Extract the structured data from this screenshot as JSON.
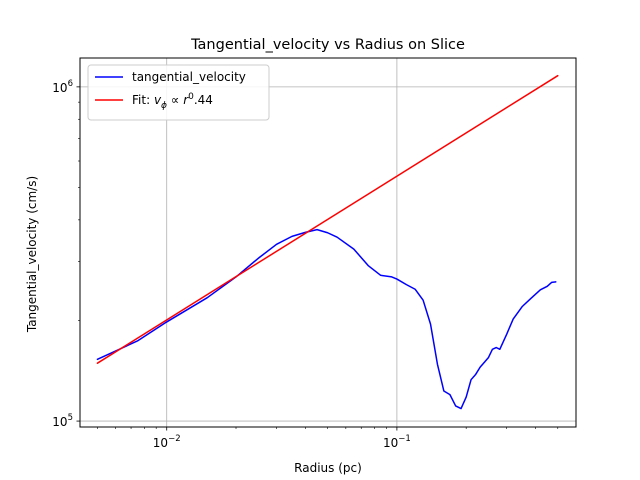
{
  "chart_data": {
    "type": "line",
    "title": "Tangential_velocity vs Radius on Slice",
    "xlabel": "Radius (pc)",
    "ylabel": "Tangential_velocity (cm/s)",
    "xscale": "log",
    "yscale": "log",
    "xlim": [
      0.0042,
      0.6
    ],
    "ylim": [
      96000,
      1220000
    ],
    "grid": true,
    "legend_position": "top-left",
    "x_ticks": [
      {
        "value": 0.01,
        "base": "10",
        "exp": "−2"
      },
      {
        "value": 0.1,
        "base": "10",
        "exp": "−1"
      }
    ],
    "y_ticks": [
      {
        "value": 100000,
        "base": "10",
        "exp": "5"
      },
      {
        "value": 1000000,
        "base": "10",
        "exp": "6"
      }
    ],
    "series": [
      {
        "name": "tangential_velocity",
        "color": "#0000ff",
        "x": [
          0.005,
          0.0075,
          0.01,
          0.015,
          0.02,
          0.025,
          0.03,
          0.035,
          0.04,
          0.045,
          0.05,
          0.055,
          0.065,
          0.075,
          0.085,
          0.095,
          0.1,
          0.11,
          0.12,
          0.13,
          0.14,
          0.15,
          0.16,
          0.17,
          0.18,
          0.19,
          0.2,
          0.21,
          0.22,
          0.23,
          0.24,
          0.25,
          0.26,
          0.27,
          0.28,
          0.3,
          0.32,
          0.35,
          0.38,
          0.42,
          0.45,
          0.47,
          0.49
        ],
        "y": [
          153000,
          174000,
          198000,
          234000,
          270000,
          307000,
          338000,
          357000,
          367000,
          374000,
          366000,
          355000,
          327000,
          292000,
          273000,
          270000,
          266000,
          256000,
          248000,
          230000,
          195000,
          148000,
          123000,
          120000,
          111000,
          109000,
          118000,
          133000,
          138000,
          145000,
          150000,
          155000,
          164000,
          166000,
          164000,
          182000,
          202000,
          220000,
          232000,
          247000,
          253000,
          260000,
          261000
        ]
      },
      {
        "name": "Fit: $v_\\phi \\propto r^0.44$",
        "color": "#ff0000",
        "x": [
          0.005,
          0.5
        ],
        "y": [
          149000,
          1080000
        ]
      }
    ]
  }
}
